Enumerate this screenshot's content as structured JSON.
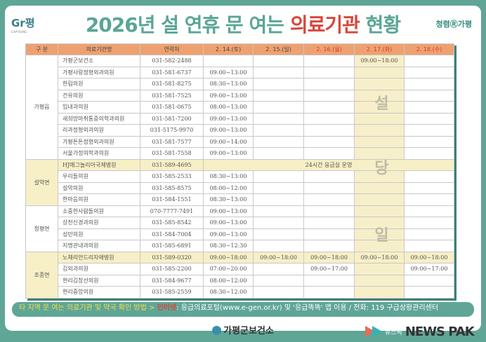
{
  "header": {
    "logo_left": "Gr평",
    "logo_left_sub": "GAPYEONG",
    "title_pre": "2026년 설 연휴 문 여는 ",
    "title_red": "의료기관",
    "title_post": " 현황",
    "logo_right": "청렴Ⓡ가평"
  },
  "table": {
    "headers": [
      "구 분",
      "의료기관명",
      "연락처",
      "2. 14.(토)",
      "2. 15.(일)",
      "2. 16.(월)",
      "2. 17.(화)",
      "2. 18.(수)"
    ],
    "holiday_color": "#d33b2f",
    "rows": [
      {
        "area": "가평읍",
        "name": "가평군보건소",
        "phone": "031-582-2488",
        "d14": "",
        "d15": "",
        "d16": "",
        "d17": "09:00~18:00",
        "d18": ""
      },
      {
        "name": "가평사랑정형외과의원",
        "phone": "031-581-6737",
        "d14": "09:00~13:00",
        "d15": "",
        "d16": "",
        "d17": "",
        "d18": ""
      },
      {
        "name": "한림의원",
        "phone": "031-581-8275",
        "d14": "08:30~13:00",
        "d15": "",
        "d16": "",
        "d17": "",
        "d18": ""
      },
      {
        "name": "건유의원",
        "phone": "031-581-7525",
        "d14": "09:00~13:00",
        "d15": "",
        "d16": "",
        "d17": "",
        "d18": ""
      },
      {
        "name": "임내과의원",
        "phone": "031-581-0675",
        "d14": "08:00~13:00",
        "d15": "",
        "d16": "",
        "d17": "",
        "d18": ""
      },
      {
        "name": "새희망마취통증의학과의원",
        "phone": "031-581-7200",
        "d14": "09:00~13:00",
        "d15": "",
        "d16": "",
        "d17": "",
        "d18": ""
      },
      {
        "name": "리과정형외과의원",
        "phone": "031-5175-9970",
        "d14": "09:00~13:00",
        "d15": "",
        "d16": "",
        "d17": "",
        "d18": ""
      },
      {
        "name": "가평튼튼정형외과의원",
        "phone": "031-581-7577",
        "d14": "09:00~14:00",
        "d15": "",
        "d16": "",
        "d17": "",
        "d18": ""
      },
      {
        "name": "서울가정의학과의원",
        "phone": "031-581-7558",
        "d14": "09:00~13:00",
        "d15": "",
        "d16": "",
        "d17": "",
        "d18": ""
      },
      {
        "area": "설악면",
        "name": "HJ매그놀리아국제병원",
        "phone": "031-589-4695",
        "merged": "24시간 응급실 운영"
      },
      {
        "name": "우리들의원",
        "phone": "031-585-2533",
        "d14": "08:30~13:00",
        "d15": "",
        "d16": "",
        "d17": "",
        "d18": ""
      },
      {
        "name": "설악의원",
        "phone": "031-585-8575",
        "d14": "08:00~12:00",
        "d15": "",
        "d16": "",
        "d17": "",
        "d18": ""
      },
      {
        "name": "한마음의원",
        "phone": "031-584-1551",
        "d14": "08:30~13:00",
        "d15": "",
        "d16": "",
        "d17": "",
        "d18": ""
      },
      {
        "area": "청평면",
        "name": "소중한사람들의원",
        "phone": "070-7777-7491",
        "d14": "09:00~13:00",
        "d15": "",
        "d16": "",
        "d17": "",
        "d18": ""
      },
      {
        "name": "상천신경과의원",
        "phone": "031-585-8542",
        "d14": "09:00~13:00",
        "d15": "",
        "d16": "",
        "d17": "",
        "d18": ""
      },
      {
        "name": "성민의원",
        "phone": "031-584-7004",
        "d14": "09:00~13:00",
        "d15": "",
        "d16": "",
        "d17": "",
        "d18": ""
      },
      {
        "name": "지명관내과의원",
        "phone": "031-585-6891",
        "d14": "08:30~12:30",
        "d15": "",
        "d16": "",
        "d17": "",
        "d18": ""
      },
      {
        "area": "조종면",
        "name": "노체리안드리자애병원",
        "phone": "031-589-0320",
        "d14": "09:00~18:00",
        "d15": "09:00~18:00",
        "d16": "09:00~18:00",
        "d17": "09:00~18:00",
        "d18": "09:00~18:00"
      },
      {
        "name": "김외과의원",
        "phone": "031-585-2200",
        "d14": "07:00~20:00",
        "d15": "",
        "d16": "09:00~17:00",
        "d17": "",
        "d18": "09:00~17:00"
      },
      {
        "name": "현리김창선의원",
        "phone": "031-584-9677",
        "d14": "08:00~12:00",
        "d15": "",
        "d16": "",
        "d17": "",
        "d18": ""
      },
      {
        "name": "현리중앙의원",
        "phone": "031-585-2559",
        "d14": "08:30~12:00",
        "d15": "",
        "d16": "",
        "d17": "",
        "d18": ""
      }
    ],
    "watermark": [
      "설",
      "당",
      "일"
    ]
  },
  "footer": {
    "lead": "타 지역 문 여는 의료기관 및 약국 확인 방법 > ",
    "internet": "인터넷",
    "rest": ": 응급의료포털(www.e-gen.or.kr) 및 '응급똑똑' 앱 이용 / 전화: 119 구급상황관리센터",
    "org": "가평군보건소"
  },
  "news_logo": {
    "ko": "뉴스팍",
    "en": "NEWS PAK"
  }
}
